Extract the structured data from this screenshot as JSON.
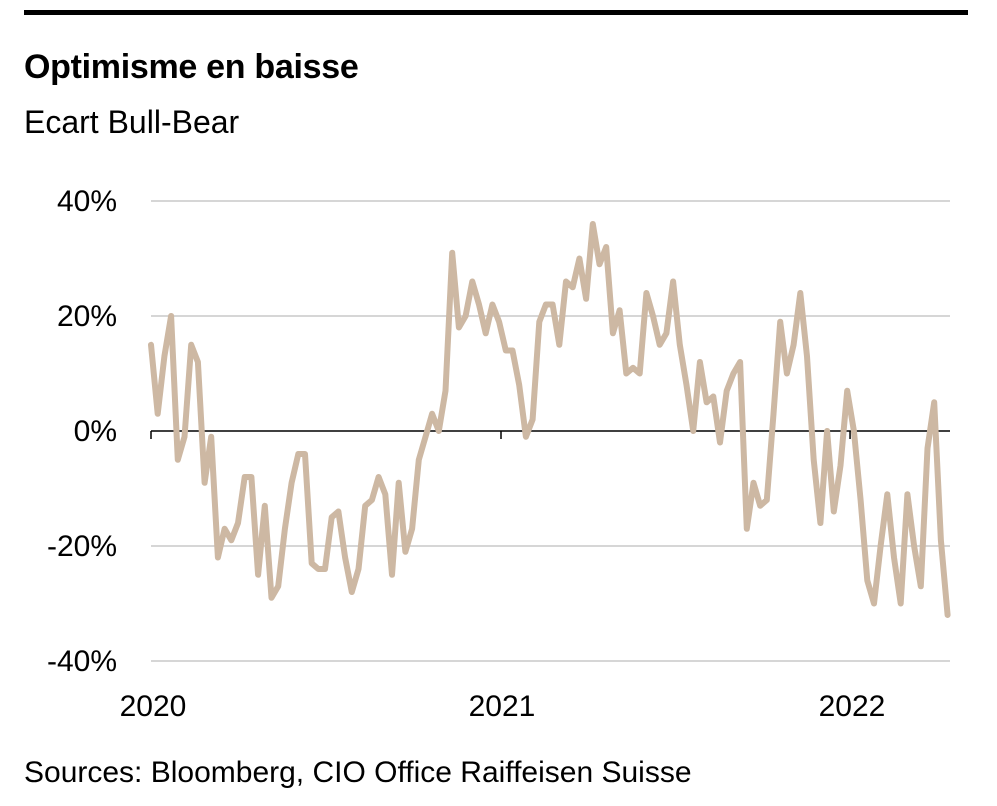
{
  "header": {
    "title": "Optimisme en baisse",
    "subtitle": "Ecart Bull-Bear"
  },
  "footer": {
    "source": "Sources: Bloomberg, CIO Office Raiffeisen Suisse"
  },
  "colors": {
    "line": "#cdb8a3",
    "grid": "#bdbdbd",
    "axis": "#000000"
  },
  "chart_data": {
    "type": "line",
    "title": "Optimisme en baisse",
    "subtitle": "Ecart Bull-Bear",
    "xlabel": "",
    "ylabel": "",
    "x_ticks": [
      "2020",
      "2021",
      "2022"
    ],
    "y_ticks": [
      "40%",
      "20%",
      "0%",
      "-20%",
      "-40%"
    ],
    "y_tick_values": [
      40,
      20,
      0,
      -20,
      -40
    ],
    "ylim": [
      -40,
      40
    ],
    "xlim": [
      "2020-01-01",
      "2022-04-15"
    ],
    "grid": true,
    "legend": "none",
    "series": [
      {
        "values": [
          [
            "2020-01-01",
            15
          ],
          [
            "2020-01-08",
            3
          ],
          [
            "2020-01-15",
            13
          ],
          [
            "2020-01-22",
            20
          ],
          [
            "2020-01-29",
            -5
          ],
          [
            "2020-02-05",
            -1
          ],
          [
            "2020-02-12",
            15
          ],
          [
            "2020-02-19",
            12
          ],
          [
            "2020-02-26",
            -9
          ],
          [
            "2020-03-04",
            -1
          ],
          [
            "2020-03-11",
            -22
          ],
          [
            "2020-03-18",
            -17
          ],
          [
            "2020-03-25",
            -19
          ],
          [
            "2020-04-01",
            -16
          ],
          [
            "2020-04-08",
            -8
          ],
          [
            "2020-04-15",
            -8
          ],
          [
            "2020-04-22",
            -25
          ],
          [
            "2020-04-29",
            -13
          ],
          [
            "2020-05-06",
            -29
          ],
          [
            "2020-05-13",
            -27
          ],
          [
            "2020-05-20",
            -17
          ],
          [
            "2020-05-27",
            -9
          ],
          [
            "2020-06-03",
            -4
          ],
          [
            "2020-06-10",
            -4
          ],
          [
            "2020-06-17",
            -23
          ],
          [
            "2020-06-24",
            -24
          ],
          [
            "2020-07-01",
            -24
          ],
          [
            "2020-07-08",
            -15
          ],
          [
            "2020-07-15",
            -14
          ],
          [
            "2020-07-22",
            -22
          ],
          [
            "2020-07-29",
            -28
          ],
          [
            "2020-08-05",
            -24
          ],
          [
            "2020-08-12",
            -13
          ],
          [
            "2020-08-19",
            -12
          ],
          [
            "2020-08-26",
            -8
          ],
          [
            "2020-09-02",
            -11
          ],
          [
            "2020-09-09",
            -25
          ],
          [
            "2020-09-16",
            -9
          ],
          [
            "2020-09-23",
            -21
          ],
          [
            "2020-09-30",
            -17
          ],
          [
            "2020-10-07",
            -5
          ],
          [
            "2020-10-14",
            -1
          ],
          [
            "2020-10-21",
            3
          ],
          [
            "2020-10-28",
            0
          ],
          [
            "2020-11-04",
            7
          ],
          [
            "2020-11-11",
            31
          ],
          [
            "2020-11-18",
            18
          ],
          [
            "2020-11-25",
            20
          ],
          [
            "2020-12-02",
            26
          ],
          [
            "2020-12-09",
            22
          ],
          [
            "2020-12-16",
            17
          ],
          [
            "2020-12-23",
            22
          ],
          [
            "2020-12-30",
            19
          ],
          [
            "2021-01-06",
            14
          ],
          [
            "2021-01-13",
            14
          ],
          [
            "2021-01-20",
            8
          ],
          [
            "2021-01-27",
            -1
          ],
          [
            "2021-02-03",
            2
          ],
          [
            "2021-02-10",
            19
          ],
          [
            "2021-02-17",
            22
          ],
          [
            "2021-02-24",
            22
          ],
          [
            "2021-03-03",
            15
          ],
          [
            "2021-03-10",
            26
          ],
          [
            "2021-03-17",
            25
          ],
          [
            "2021-03-24",
            30
          ],
          [
            "2021-03-31",
            23
          ],
          [
            "2021-04-07",
            36
          ],
          [
            "2021-04-14",
            29
          ],
          [
            "2021-04-21",
            32
          ],
          [
            "2021-04-28",
            17
          ],
          [
            "2021-05-05",
            21
          ],
          [
            "2021-05-12",
            10
          ],
          [
            "2021-05-19",
            11
          ],
          [
            "2021-05-26",
            10
          ],
          [
            "2021-06-02",
            24
          ],
          [
            "2021-06-09",
            20
          ],
          [
            "2021-06-16",
            15
          ],
          [
            "2021-06-23",
            17
          ],
          [
            "2021-06-30",
            26
          ],
          [
            "2021-07-07",
            15
          ],
          [
            "2021-07-14",
            8
          ],
          [
            "2021-07-21",
            0
          ],
          [
            "2021-07-28",
            12
          ],
          [
            "2021-08-04",
            5
          ],
          [
            "2021-08-11",
            6
          ],
          [
            "2021-08-18",
            -2
          ],
          [
            "2021-08-25",
            7
          ],
          [
            "2021-09-01",
            10
          ],
          [
            "2021-09-08",
            12
          ],
          [
            "2021-09-15",
            -17
          ],
          [
            "2021-09-22",
            -9
          ],
          [
            "2021-09-29",
            -13
          ],
          [
            "2021-10-06",
            -12
          ],
          [
            "2021-10-13",
            3
          ],
          [
            "2021-10-20",
            19
          ],
          [
            "2021-10-27",
            10
          ],
          [
            "2021-11-03",
            15
          ],
          [
            "2021-11-10",
            24
          ],
          [
            "2021-11-17",
            13
          ],
          [
            "2021-11-24",
            -5
          ],
          [
            "2021-12-01",
            -16
          ],
          [
            "2021-12-08",
            0
          ],
          [
            "2021-12-15",
            -14
          ],
          [
            "2021-12-22",
            -6
          ],
          [
            "2021-12-29",
            7
          ],
          [
            "2022-01-05",
            0
          ],
          [
            "2022-01-12",
            -12
          ],
          [
            "2022-01-19",
            -26
          ],
          [
            "2022-01-26",
            -30
          ],
          [
            "2022-02-02",
            -20
          ],
          [
            "2022-02-09",
            -11
          ],
          [
            "2022-02-16",
            -22
          ],
          [
            "2022-02-23",
            -30
          ],
          [
            "2022-03-02",
            -11
          ],
          [
            "2022-03-09",
            -20
          ],
          [
            "2022-03-16",
            -27
          ],
          [
            "2022-03-23",
            -3
          ],
          [
            "2022-03-30",
            5
          ],
          [
            "2022-04-06",
            -19
          ],
          [
            "2022-04-13",
            -32
          ]
        ]
      }
    ]
  }
}
